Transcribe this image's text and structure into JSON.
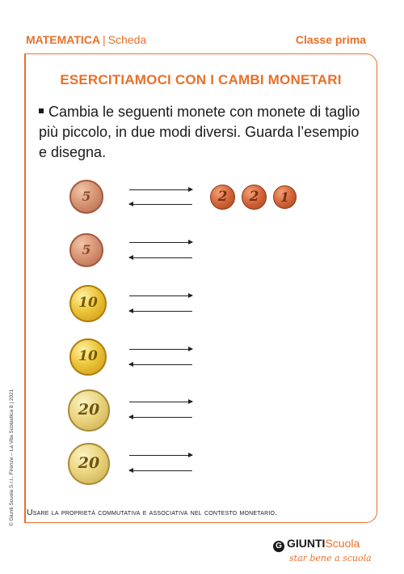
{
  "header": {
    "subject": "MATEMATICA",
    "separator": "|",
    "type": "Scheda",
    "grade": "Classe prima"
  },
  "title": "ESERCITIAMOCI CON I CAMBI MONETARI",
  "instruction": "Cambia le seguenti monete con monete di taglio più piccolo, in due modi diversi. Guarda l’esempio e disegna.",
  "rows": [
    {
      "coin": "5",
      "example": [
        "2",
        "2",
        "1"
      ]
    },
    {
      "coin": "5"
    },
    {
      "coin": "10"
    },
    {
      "coin": "10"
    },
    {
      "coin": "20"
    },
    {
      "coin": "20"
    }
  ],
  "objective": "Usare la proprietà commutativa e associativa nel contesto monetario.",
  "side_credit": "© Giunti Scuola S.r.l., Firenze – La Vita Scolastica 8 | 2021",
  "brand": {
    "name": "GIUNTI",
    "suffix": "Scuola",
    "tagline": "star bene a scuola"
  }
}
